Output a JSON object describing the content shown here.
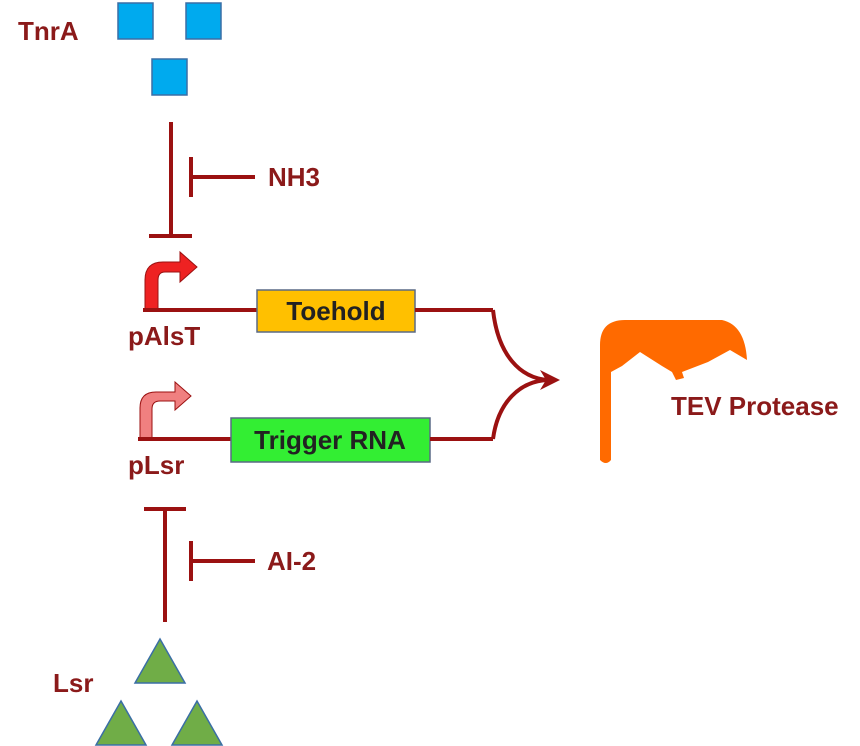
{
  "labels": {
    "tnra": "TnrA",
    "nh3": "NH3",
    "palst": "pAlsT",
    "toehold": "Toehold",
    "tev": "TEV Protease",
    "plsr": "pLsr",
    "trigger": "Trigger RNA",
    "ai2": "AI-2",
    "lsr": "Lsr"
  },
  "colors": {
    "line": "#9b1111",
    "label": "#8b1a1a",
    "tnra_square": "#00aaee",
    "lsr_triangle": "#70ad47",
    "toehold_box": "#ffc000",
    "trigger_box": "#33ee33",
    "palst_arrow": "#ee2222",
    "plsr_arrow": "#f08080",
    "tev": "#ff6a00"
  },
  "icons": {
    "tev": "tev-protease-shape",
    "palst_promoter": "bent-arrow-icon",
    "plsr_promoter": "bent-arrow-icon"
  }
}
